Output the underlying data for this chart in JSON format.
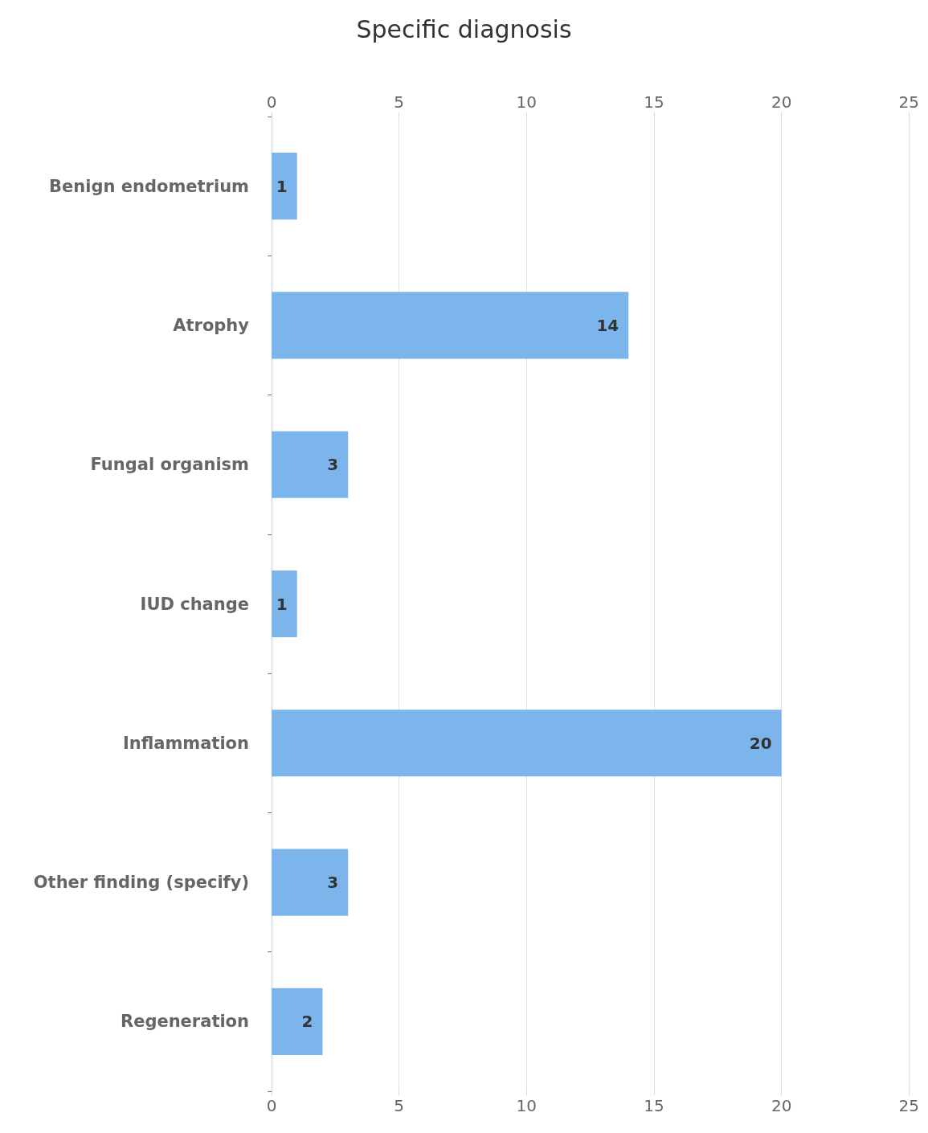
{
  "chart_data": {
    "type": "bar",
    "orientation": "horizontal",
    "title": "Specific diagnosis",
    "categories": [
      "Benign endometrium",
      "Atrophy",
      "Fungal organism",
      "IUD change",
      "Inflammation",
      "Other finding (specify)",
      "Regeneration"
    ],
    "values": [
      1,
      14,
      3,
      1,
      20,
      3,
      2
    ],
    "color": "#7cb5ec",
    "xlim": [
      0,
      25
    ],
    "xticks": [
      0,
      5,
      10,
      15,
      20,
      25
    ],
    "x2lim": [
      0,
      25
    ],
    "x2ticks": [
      0,
      5,
      10,
      15,
      20,
      25
    ],
    "grid": "x",
    "data_labels": true
  }
}
